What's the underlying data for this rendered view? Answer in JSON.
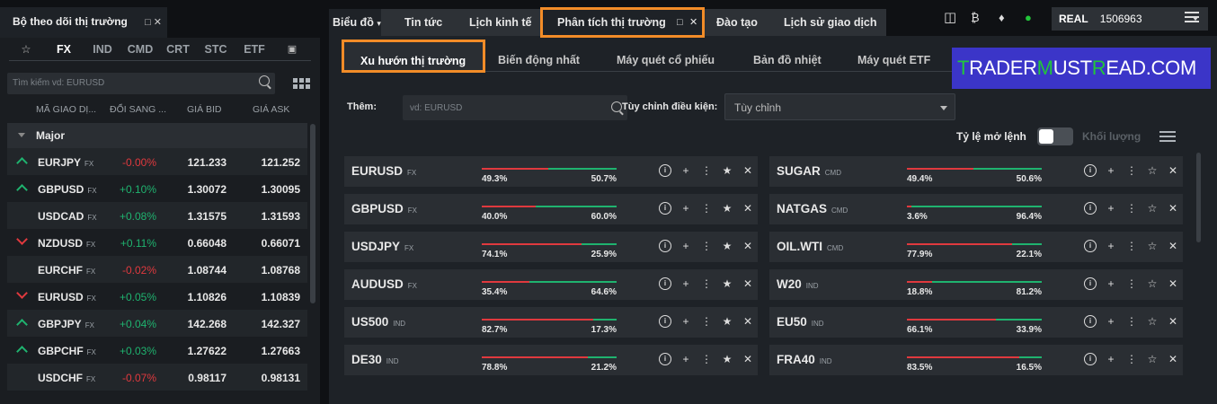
{
  "watchlist": {
    "title": "Bộ theo dõi thị trường",
    "tabs": [
      "FX",
      "IND",
      "CMD",
      "CRT",
      "STC",
      "ETF"
    ],
    "active_tab": "FX",
    "search_placeholder": "Tìm kiếm vd: EURUSD",
    "columns": [
      "MÃ GIAO DỊ...",
      "ĐỔI SANG ...",
      "GIÁ BID",
      "GIÁ ASK"
    ],
    "group": "Major",
    "rows": [
      {
        "symbol": "EURJPY",
        "type": "FX",
        "dir": "up",
        "change": "-0.00%",
        "bid": "121.233",
        "ask": "121.252"
      },
      {
        "symbol": "GBPUSD",
        "type": "FX",
        "dir": "up",
        "change": "+0.10%",
        "bid": "1.30072",
        "ask": "1.30095"
      },
      {
        "symbol": "USDCAD",
        "type": "FX",
        "dir": "",
        "change": "+0.08%",
        "bid": "1.31575",
        "ask": "1.31593"
      },
      {
        "symbol": "NZDUSD",
        "type": "FX",
        "dir": "down",
        "change": "+0.11%",
        "bid": "0.66048",
        "ask": "0.66071"
      },
      {
        "symbol": "EURCHF",
        "type": "FX",
        "dir": "",
        "change": "-0.02%",
        "bid": "1.08744",
        "ask": "1.08768"
      },
      {
        "symbol": "EURUSD",
        "type": "FX",
        "dir": "down",
        "change": "+0.05%",
        "bid": "1.10826",
        "ask": "1.10839"
      },
      {
        "symbol": "GBPJPY",
        "type": "FX",
        "dir": "up",
        "change": "+0.04%",
        "bid": "142.268",
        "ask": "142.327"
      },
      {
        "symbol": "GBPCHF",
        "type": "FX",
        "dir": "up",
        "change": "+0.03%",
        "bid": "1.27622",
        "ask": "1.27663"
      },
      {
        "symbol": "USDCHF",
        "type": "FX",
        "dir": "",
        "change": "-0.07%",
        "bid": "0.98117",
        "ask": "0.98131"
      }
    ]
  },
  "top_tabs": [
    "Biểu đồ",
    "Tin tức",
    "Lịch kinh tế",
    "Phân tích thị trường",
    "Đào tạo",
    "Lịch sử giao dịch"
  ],
  "sub_tabs": [
    "Xu hướn thị trường",
    "Biến động nhất",
    "Máy quét cổ phiếu",
    "Bản đồ nhiệt",
    "Máy quét ETF"
  ],
  "brand": {
    "parts": [
      "T",
      "RADER",
      "M",
      "UST",
      "R",
      "EAD.COM"
    ]
  },
  "filters": {
    "add_label": "Thêm:",
    "add_placeholder": "vd: EURUSD",
    "condition_label": "Tùy chỉnh điều kiện:",
    "condition_value": "Tùy chỉnh"
  },
  "ratio_toggle": {
    "label": "Tỷ lệ mở lệnh",
    "alt_label": "Khối lượng"
  },
  "account": {
    "mode": "REAL",
    "number": "1506963"
  },
  "sentiment_left": [
    {
      "symbol": "EURUSD",
      "type": "FX",
      "short": "49.3%",
      "long": "50.7%",
      "short_frac": 0.493
    },
    {
      "symbol": "GBPUSD",
      "type": "FX",
      "short": "40.0%",
      "long": "60.0%",
      "short_frac": 0.4
    },
    {
      "symbol": "USDJPY",
      "type": "FX",
      "short": "74.1%",
      "long": "25.9%",
      "short_frac": 0.741
    },
    {
      "symbol": "AUDUSD",
      "type": "FX",
      "short": "35.4%",
      "long": "64.6%",
      "short_frac": 0.354
    },
    {
      "symbol": "US500",
      "type": "IND",
      "short": "82.7%",
      "long": "17.3%",
      "short_frac": 0.827
    },
    {
      "symbol": "DE30",
      "type": "IND",
      "short": "78.8%",
      "long": "21.2%",
      "short_frac": 0.788
    }
  ],
  "sentiment_right": [
    {
      "symbol": "SUGAR",
      "type": "CMD",
      "short": "49.4%",
      "long": "50.6%",
      "short_frac": 0.494
    },
    {
      "symbol": "NATGAS",
      "type": "CMD",
      "short": "3.6%",
      "long": "96.4%",
      "short_frac": 0.036
    },
    {
      "symbol": "OIL.WTI",
      "type": "CMD",
      "short": "77.9%",
      "long": "22.1%",
      "short_frac": 0.779
    },
    {
      "symbol": "W20",
      "type": "IND",
      "short": "18.8%",
      "long": "81.2%",
      "short_frac": 0.188
    },
    {
      "symbol": "EU50",
      "type": "IND",
      "short": "66.1%",
      "long": "33.9%",
      "short_frac": 0.661
    },
    {
      "symbol": "FRA40",
      "type": "IND",
      "short": "83.5%",
      "long": "16.5%",
      "short_frac": 0.835
    }
  ],
  "colors": {
    "up": "#1fb36f",
    "down": "#e0393e",
    "highlight": "#f28c28",
    "brand_bg": "#3b35c8",
    "brand_green": "#22c63a"
  }
}
